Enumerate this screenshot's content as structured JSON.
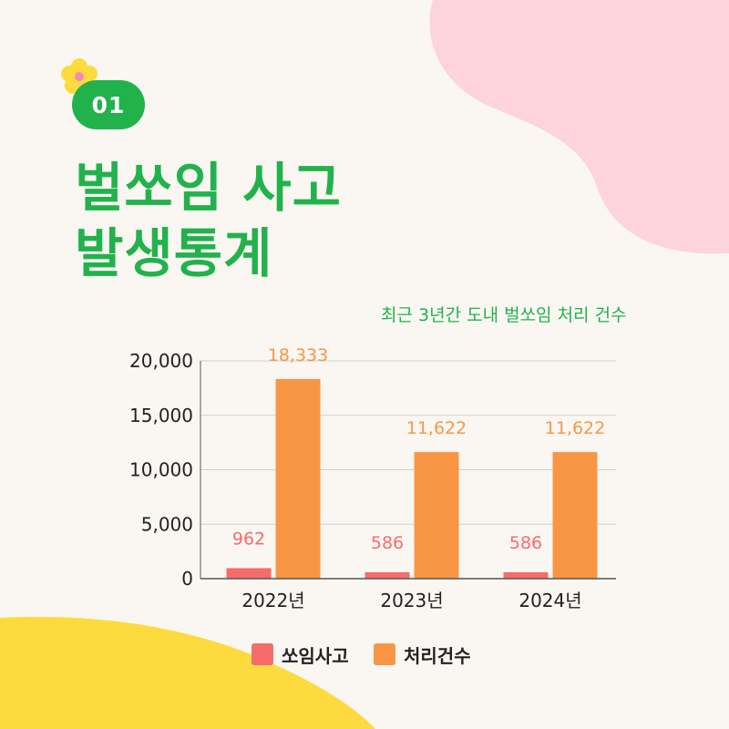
{
  "badge": {
    "number": "01"
  },
  "title": {
    "line1": "벌쏘임 사고",
    "line2": "발생통계"
  },
  "subtitle": "최근 3년간 도내 벌쏘임 처리 건수",
  "colors": {
    "green": "#22b24c",
    "pink_blob": "#fdd3dc",
    "yellow_blob": "#fddb3f",
    "series_sting": "#f76b6b",
    "series_handled": "#f99645"
  },
  "chart_data": {
    "type": "bar",
    "categories": [
      "2022년",
      "2023년",
      "2024년"
    ],
    "series": [
      {
        "name": "쏘임사고",
        "values": [
          962,
          586,
          586
        ],
        "color": "#f76b6b",
        "labels": [
          "962",
          "586",
          "586"
        ]
      },
      {
        "name": "처리건수",
        "values": [
          18333,
          11622,
          11622
        ],
        "color": "#f99645",
        "labels": [
          "18,333",
          "11,622",
          "11,622"
        ]
      }
    ],
    "ylim": [
      0,
      20000
    ],
    "yticks": [
      0,
      5000,
      10000,
      15000,
      20000
    ],
    "ytick_labels": [
      "0",
      "5,000",
      "10,000",
      "15,000",
      "20,000"
    ],
    "grid": true,
    "legend_position": "bottom"
  }
}
